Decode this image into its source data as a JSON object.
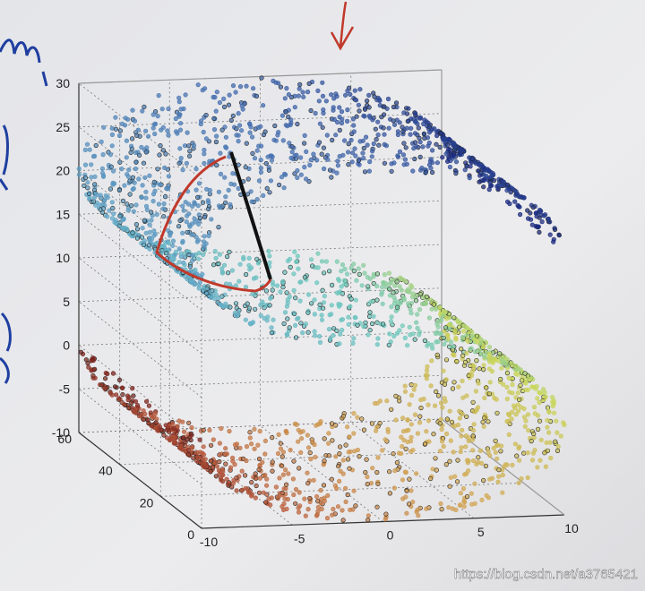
{
  "axes": {
    "z_ticks": [
      30,
      25,
      20,
      15,
      10,
      5,
      0,
      -5,
      -10
    ],
    "y_ticks": [
      60,
      40,
      20,
      0
    ],
    "x_ticks": [
      -10,
      -5,
      0,
      5,
      10
    ]
  },
  "watermark": "https://blog.csdn.net/a3765421"
}
